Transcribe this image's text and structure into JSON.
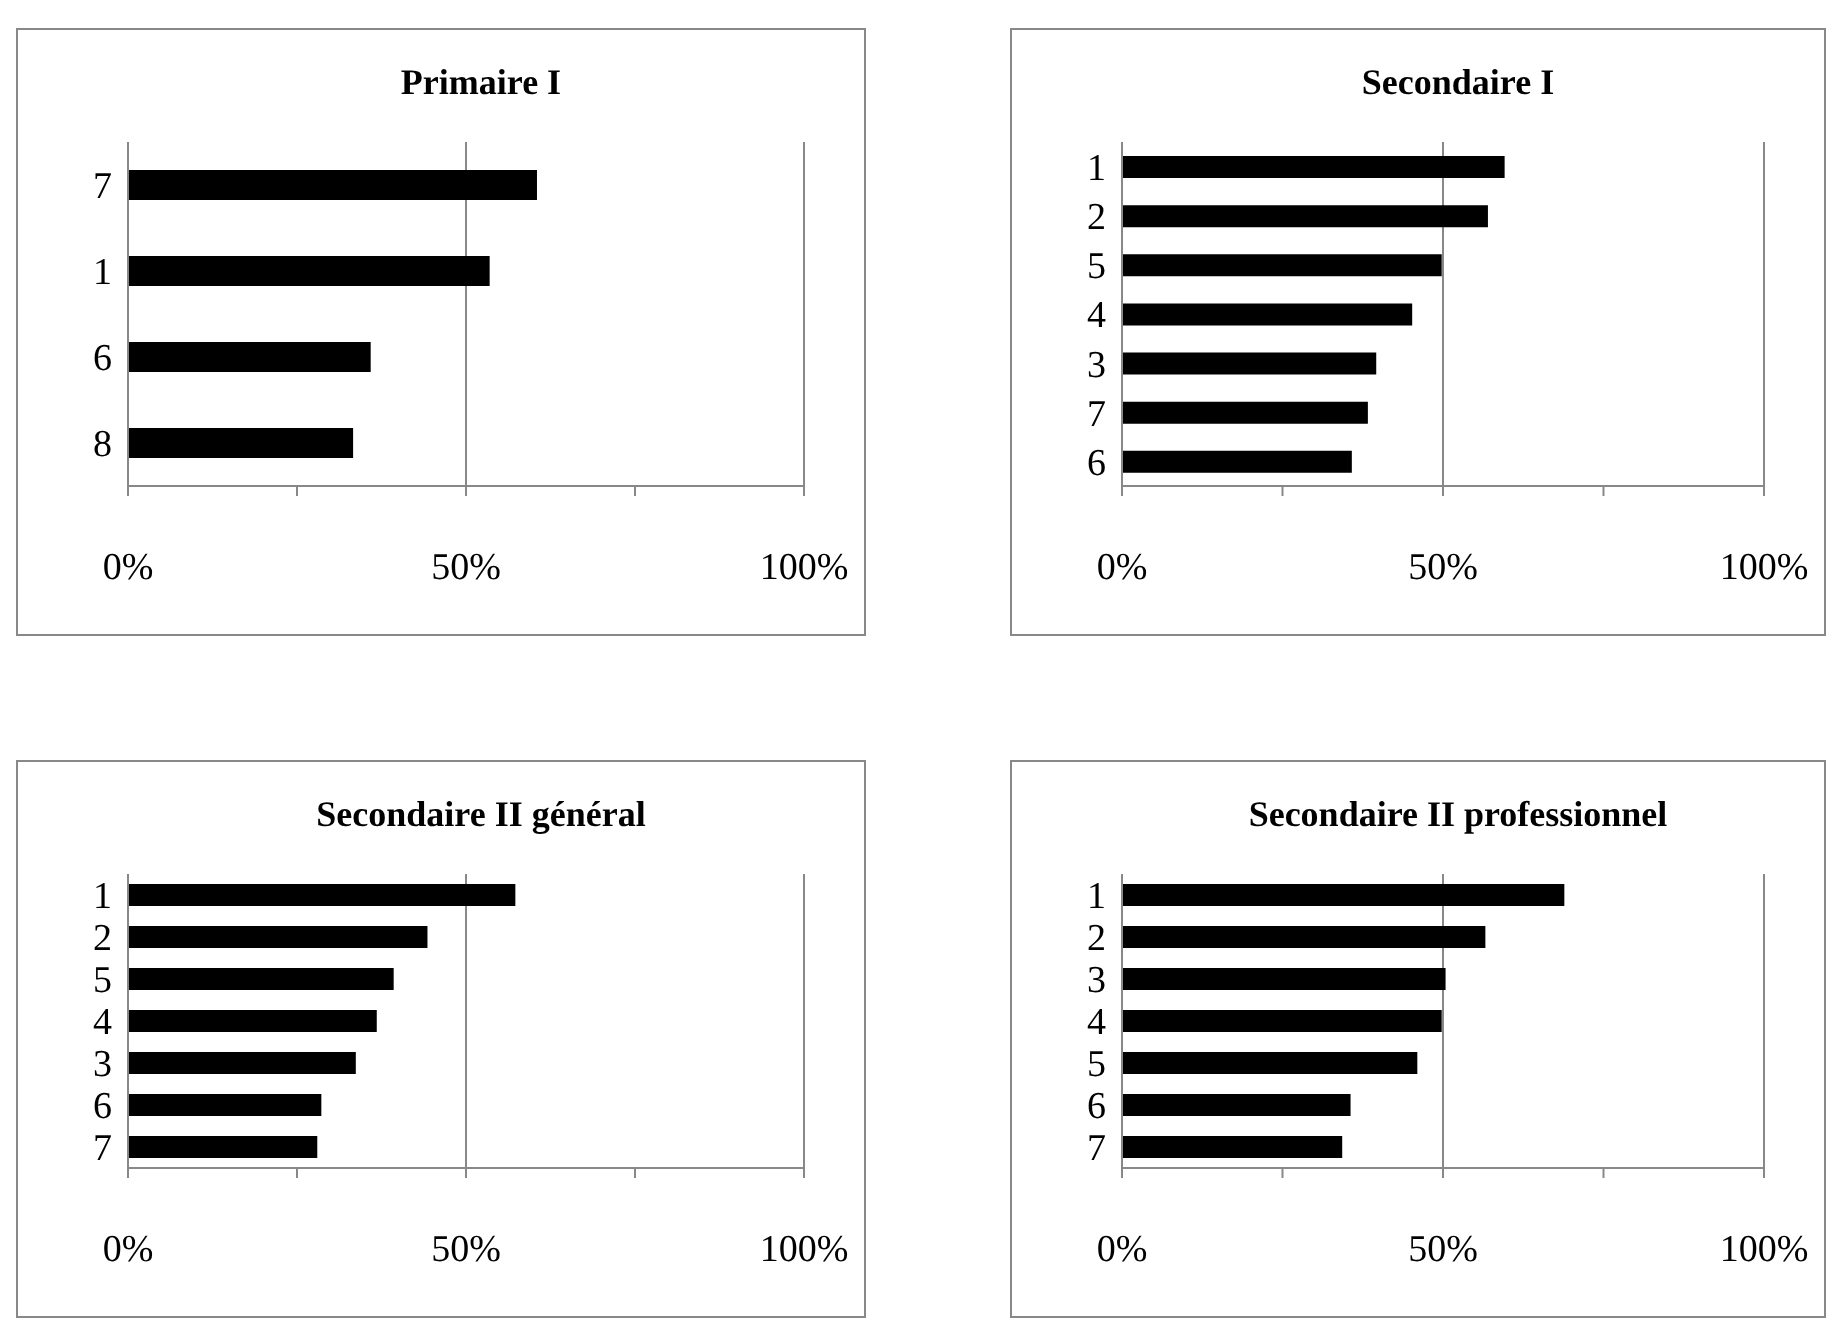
{
  "chart_data": [
    {
      "type": "bar",
      "orientation": "horizontal",
      "title": "Primaire I",
      "categories": [
        "7",
        "1",
        "6",
        "8"
      ],
      "values": [
        60.5,
        53.5,
        35.9,
        33.3
      ],
      "color": "#000000",
      "xlim": [
        0,
        100
      ],
      "xticks": [
        {
          "value": 0,
          "label": "0%"
        },
        {
          "value": 25,
          "label": null
        },
        {
          "value": 50,
          "label": "50%"
        },
        {
          "value": 75,
          "label": null
        },
        {
          "value": 100,
          "label": "100%"
        }
      ],
      "grid": "x",
      "legend": false
    },
    {
      "type": "bar",
      "orientation": "horizontal",
      "title": "Secondaire I",
      "categories": [
        "1",
        "2",
        "5",
        "4",
        "3",
        "7",
        "6"
      ],
      "values": [
        59.6,
        57.0,
        49.8,
        45.2,
        39.6,
        38.3,
        35.8
      ],
      "color": "#000000",
      "xlim": [
        0,
        100
      ],
      "xticks": [
        {
          "value": 0,
          "label": "0%"
        },
        {
          "value": 25,
          "label": null
        },
        {
          "value": 50,
          "label": "50%"
        },
        {
          "value": 75,
          "label": null
        },
        {
          "value": 100,
          "label": "100%"
        }
      ],
      "grid": "x",
      "legend": false
    },
    {
      "type": "bar",
      "orientation": "horizontal",
      "title": "Secondaire II général",
      "categories": [
        "1",
        "2",
        "5",
        "4",
        "3",
        "6",
        "7"
      ],
      "values": [
        57.3,
        44.3,
        39.3,
        36.8,
        33.7,
        28.6,
        28.0
      ],
      "color": "#000000",
      "xlim": [
        0,
        100
      ],
      "xticks": [
        {
          "value": 0,
          "label": "0%"
        },
        {
          "value": 25,
          "label": null
        },
        {
          "value": 50,
          "label": "50%"
        },
        {
          "value": 75,
          "label": null
        },
        {
          "value": 100,
          "label": "100%"
        }
      ],
      "grid": "x",
      "legend": false
    },
    {
      "type": "bar",
      "orientation": "horizontal",
      "title": "Secondaire II professionnel",
      "categories": [
        "1",
        "2",
        "3",
        "4",
        "5",
        "6",
        "7"
      ],
      "values": [
        68.9,
        56.6,
        50.4,
        49.8,
        46.0,
        35.6,
        34.3
      ],
      "color": "#000000",
      "xlim": [
        0,
        100
      ],
      "xticks": [
        {
          "value": 0,
          "label": "0%"
        },
        {
          "value": 25,
          "label": null
        },
        {
          "value": 50,
          "label": "50%"
        },
        {
          "value": 75,
          "label": null
        },
        {
          "value": 100,
          "label": "100%"
        }
      ],
      "grid": "x",
      "legend": false
    }
  ]
}
